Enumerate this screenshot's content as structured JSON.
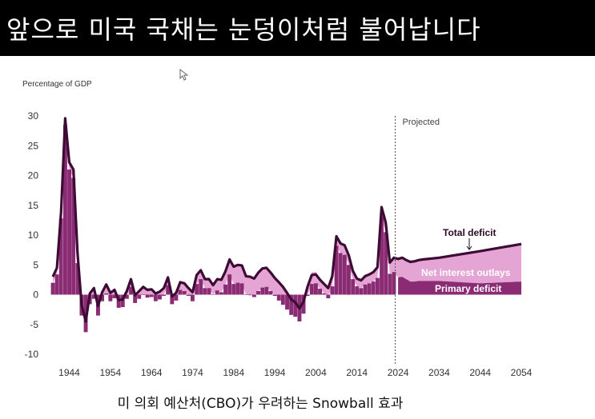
{
  "banner": {
    "title": "앞으로 미국 국채는 눈덩이처럼 불어납니다"
  },
  "caption": "미 의회 예산처(CBO)가 우려하는 Snowball 효과",
  "colors": {
    "banner_bg": "#000000",
    "total_line": "#3d0c35",
    "net_interest": "#e4a4d4",
    "primary_deficit": "#8a2b74",
    "axis_text": "#333333"
  },
  "chart_data": {
    "type": "area",
    "ylabel": "Percentage of GDP",
    "projected_label": "Projected",
    "projection_start": 2024,
    "x_ticks": [
      "1944",
      "1954",
      "1964",
      "1974",
      "1984",
      "1994",
      "2004",
      "2014",
      "2024",
      "2034",
      "2044",
      "2054"
    ],
    "y_ticks": [
      "30",
      "25",
      "20",
      "15",
      "10",
      "5",
      "0",
      "-5",
      "-10"
    ],
    "xlim": [
      1940,
      2054
    ],
    "ylim": [
      -10,
      30
    ],
    "grid": false,
    "series": [
      {
        "name": "Total deficit",
        "x": [
          1940,
          1941,
          1942,
          1943,
          1944,
          1945,
          1946,
          1947,
          1948,
          1949,
          1950,
          1951,
          1952,
          1953,
          1954,
          1955,
          1956,
          1957,
          1958,
          1959,
          1960,
          1961,
          1962,
          1963,
          1964,
          1965,
          1966,
          1967,
          1968,
          1969,
          1970,
          1971,
          1972,
          1973,
          1974,
          1975,
          1976,
          1977,
          1978,
          1979,
          1980,
          1981,
          1982,
          1983,
          1984,
          1985,
          1986,
          1987,
          1988,
          1989,
          1990,
          1991,
          1992,
          1993,
          1994,
          1995,
          1996,
          1997,
          1998,
          1999,
          2000,
          2001,
          2002,
          2003,
          2004,
          2005,
          2006,
          2007,
          2008,
          2009,
          2010,
          2011,
          2012,
          2013,
          2014,
          2015,
          2016,
          2017,
          2018,
          2019,
          2020,
          2021,
          2022,
          2023,
          2024,
          2025,
          2026,
          2027,
          2028,
          2029,
          2030,
          2034,
          2044,
          2054
        ],
        "values": [
          3.0,
          4.5,
          13.9,
          29.6,
          22.2,
          21.0,
          7.0,
          -1.7,
          -4.5,
          0.2,
          1.1,
          -1.9,
          0.4,
          1.7,
          0.3,
          0.8,
          -0.9,
          -0.8,
          0.6,
          2.6,
          -0.1,
          0.6,
          1.3,
          0.8,
          0.9,
          0.2,
          0.5,
          1.1,
          2.9,
          -0.3,
          0.3,
          2.1,
          1.9,
          1.1,
          0.4,
          3.3,
          4.1,
          2.6,
          2.6,
          1.6,
          2.6,
          2.5,
          3.9,
          5.9,
          4.7,
          5.0,
          4.9,
          3.1,
          3.0,
          2.7,
          3.7,
          4.4,
          4.5,
          3.7,
          2.8,
          2.1,
          1.3,
          0.3,
          -0.8,
          -1.3,
          -2.3,
          -1.2,
          1.4,
          3.3,
          3.4,
          2.5,
          1.8,
          1.1,
          3.1,
          9.8,
          8.6,
          8.3,
          6.6,
          4.0,
          2.7,
          2.4,
          3.1,
          3.4,
          3.8,
          4.6,
          14.7,
          12.1,
          5.4,
          6.2,
          6.0,
          6.2,
          5.8,
          5.5,
          5.6,
          5.8,
          5.9,
          6.2,
          7.3,
          8.5
        ]
      },
      {
        "name": "Net interest outlays",
        "x": [
          1940,
          1944,
          1946,
          1950,
          1960,
          1970,
          1980,
          1985,
          1991,
          1995,
          2000,
          2007,
          2010,
          2015,
          2020,
          2022,
          2023,
          2024,
          2034,
          2044,
          2054
        ],
        "values": [
          1.0,
          1.2,
          1.8,
          1.8,
          1.3,
          1.3,
          1.9,
          3.0,
          3.2,
          3.1,
          2.2,
          1.7,
          1.5,
          1.3,
          1.6,
          1.9,
          2.4,
          3.1,
          3.9,
          5.4,
          6.3
        ]
      },
      {
        "name": "Primary deficit",
        "x": [
          1940,
          1941,
          1942,
          1943,
          1944,
          1945,
          1946,
          1947,
          1948,
          1949,
          1950,
          1951,
          1952,
          1953,
          1954,
          1955,
          1956,
          1957,
          1958,
          1959,
          1960,
          1961,
          1962,
          1963,
          1964,
          1965,
          1966,
          1967,
          1968,
          1969,
          1970,
          1971,
          1972,
          1973,
          1974,
          1975,
          1976,
          1977,
          1978,
          1979,
          1980,
          1981,
          1982,
          1983,
          1984,
          1985,
          1986,
          1987,
          1988,
          1989,
          1990,
          1991,
          1992,
          1993,
          1994,
          1995,
          1996,
          1997,
          1998,
          1999,
          2000,
          2001,
          2002,
          2003,
          2004,
          2005,
          2006,
          2007,
          2008,
          2009,
          2010,
          2011,
          2012,
          2013,
          2014,
          2015,
          2016,
          2017,
          2018,
          2019,
          2020,
          2021,
          2022,
          2023,
          2024,
          2025,
          2026,
          2027,
          2028,
          2029,
          2030,
          2034,
          2044,
          2054
        ],
        "values": [
          2.0,
          3.4,
          12.8,
          28.5,
          21.0,
          19.6,
          5.3,
          -3.5,
          -6.3,
          -1.6,
          -0.7,
          -3.5,
          -1.1,
          0.2,
          -1.1,
          -0.6,
          -2.2,
          -2.1,
          -0.7,
          1.3,
          -1.4,
          -0.7,
          0.0,
          -0.5,
          -0.4,
          -1.1,
          -0.8,
          -0.2,
          1.6,
          -1.6,
          -1.0,
          0.8,
          0.6,
          -0.2,
          -1.1,
          1.8,
          2.6,
          1.1,
          1.1,
          0.0,
          0.7,
          0.4,
          1.7,
          3.4,
          1.8,
          2.0,
          1.9,
          0.0,
          -0.1,
          -0.4,
          0.6,
          1.2,
          1.3,
          0.6,
          -0.2,
          -1.0,
          -1.7,
          -2.5,
          -3.4,
          -3.7,
          -4.5,
          -3.2,
          -0.2,
          1.8,
          1.9,
          1.0,
          0.2,
          -0.6,
          1.4,
          8.2,
          7.0,
          6.7,
          5.0,
          2.6,
          1.4,
          1.1,
          1.7,
          1.9,
          2.2,
          2.8,
          13.1,
          10.5,
          3.5,
          3.8,
          2.9,
          3.0,
          2.6,
          2.2,
          2.2,
          2.3,
          2.3,
          2.3,
          1.9,
          2.2
        ]
      }
    ],
    "annotations": [
      "Total deficit",
      "Net interest outlays",
      "Primary deficit"
    ]
  }
}
